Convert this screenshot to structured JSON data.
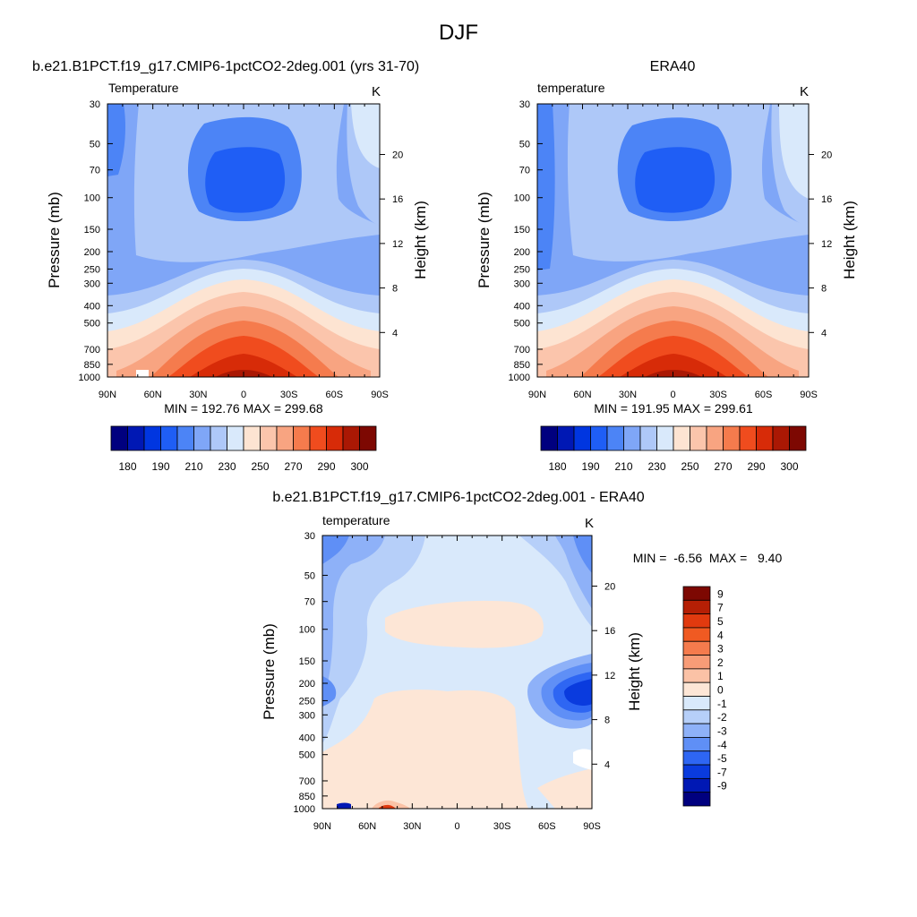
{
  "figure": {
    "title": "DJF"
  },
  "chart_data": [
    {
      "type": "heatmap",
      "kind": "pressure-latitude contour (filled)",
      "title": "b.e21.B1PCT.f19_g17.CMIP6-1pctCO2-2deg.001 (yrs 31-70)",
      "variable_label": "Temperature",
      "units_label": "K",
      "xlabel": "",
      "ylabel": "Pressure (mb)",
      "ylabel_right": "Height (km)",
      "x_ticks": [
        "90N",
        "60N",
        "30N",
        "0",
        "30S",
        "60S",
        "90S"
      ],
      "y_ticks": [
        "30",
        "50",
        "70",
        "100",
        "150",
        "200",
        "250",
        "300",
        "400",
        "500",
        "700",
        "850",
        "1000"
      ],
      "y_ticks_right": [
        "20",
        "16",
        "12",
        "8",
        "4"
      ],
      "stats": "MIN = 192.76  MAX = 299.68",
      "min": 192.76,
      "max": 299.68,
      "colorbar": {
        "labels": [
          "180",
          "190",
          "210",
          "230",
          "250",
          "270",
          "290",
          "300"
        ],
        "colors": [
          "#00007f",
          "#0018b4",
          "#0036e0",
          "#1f5ef5",
          "#4c84f6",
          "#7fa6f7",
          "#aec8f8",
          "#d9e9fb",
          "#fde4d2",
          "#fbc5ac",
          "#f8a481",
          "#f57b4d",
          "#f04c1e",
          "#d72b08",
          "#aa1804",
          "#7d0802"
        ]
      }
    },
    {
      "type": "heatmap",
      "kind": "pressure-latitude contour (filled)",
      "title": "ERA40",
      "variable_label": "temperature",
      "units_label": "K",
      "ylabel": "Pressure (mb)",
      "ylabel_right": "Height (km)",
      "x_ticks": [
        "90N",
        "60N",
        "30N",
        "0",
        "30S",
        "60S",
        "90S"
      ],
      "y_ticks": [
        "30",
        "50",
        "70",
        "100",
        "150",
        "200",
        "250",
        "300",
        "400",
        "500",
        "700",
        "850",
        "1000"
      ],
      "y_ticks_right": [
        "20",
        "16",
        "12",
        "8",
        "4"
      ],
      "stats": "MIN = 191.95  MAX = 299.61",
      "min": 191.95,
      "max": 299.61,
      "colorbar": {
        "labels": [
          "180",
          "190",
          "210",
          "230",
          "250",
          "270",
          "290",
          "300"
        ],
        "colors": [
          "#00007f",
          "#0018b4",
          "#0036e0",
          "#1f5ef5",
          "#4c84f6",
          "#7fa6f7",
          "#aec8f8",
          "#d9e9fb",
          "#fde4d2",
          "#fbc5ac",
          "#f8a481",
          "#f57b4d",
          "#f04c1e",
          "#d72b08",
          "#aa1804",
          "#7d0802"
        ]
      }
    },
    {
      "type": "heatmap",
      "kind": "pressure-latitude contour (filled), difference",
      "title": "b.e21.B1PCT.f19_g17.CMIP6-1pctCO2-2deg.001 - ERA40",
      "variable_label": "temperature",
      "units_label": "K",
      "ylabel": "Pressure (mb)",
      "ylabel_right": "Height (km)",
      "x_ticks": [
        "90N",
        "60N",
        "30N",
        "0",
        "30S",
        "60S",
        "90S"
      ],
      "y_ticks": [
        "30",
        "50",
        "70",
        "100",
        "150",
        "200",
        "250",
        "300",
        "400",
        "500",
        "700",
        "850",
        "1000"
      ],
      "y_ticks_right": [
        "20",
        "16",
        "12",
        "8",
        "4"
      ],
      "stats": "MIN =  -6.56  MAX =   9.40",
      "min": -6.56,
      "max": 9.4,
      "colorbar": {
        "labels": [
          "9",
          "7",
          "5",
          "4",
          "3",
          "2",
          "1",
          "0",
          "-1",
          "-2",
          "-3",
          "-4",
          "-5",
          "-7",
          "-9"
        ],
        "colors": [
          "#7d0802",
          "#b51f05",
          "#e13a0f",
          "#f05a22",
          "#f57b4d",
          "#f89c77",
          "#fbc2a6",
          "#fde6d6",
          "#d9e9fb",
          "#b6cff9",
          "#8eb1f8",
          "#5f8ff6",
          "#2e66f3",
          "#0a3bde",
          "#0018b4",
          "#00007f"
        ]
      }
    }
  ]
}
